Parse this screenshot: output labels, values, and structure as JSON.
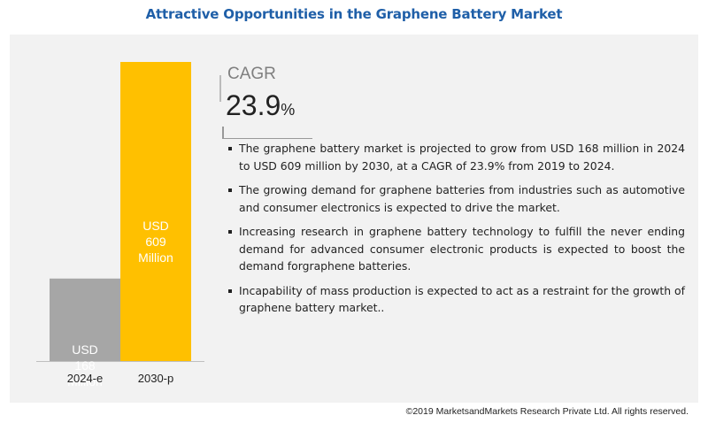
{
  "title": "Attractive Opportunities in the Graphene Battery Market",
  "cagr": {
    "label": "CAGR",
    "value": "23.9",
    "unit": "%"
  },
  "bullets": [
    "The graphene battery market is projected to grow from USD 168 million in 2024 to USD 609 million by 2030, at a CAGR of 23.9% from 2019 to 2024.",
    "The growing demand for graphene batteries from industries such as automotive and consumer electronics is expected to drive the market.",
    "Increasing research in graphene battery technology to fulfill the never ending demand for advanced consumer electronic products is expected to boost the demand forgraphene batteries.",
    "Incapability of mass production is expected to act as a restraint for the growth of graphene battery market.."
  ],
  "copyright": "©2019 MarketsandMarkets Research Private Ltd. All rights reserved.",
  "colors": {
    "title": "#1f5fa8",
    "bar1": "#a6a6a6",
    "bar2": "#ffc000",
    "panel": "#f2f2f2"
  },
  "chart_data": {
    "type": "bar",
    "categories": [
      "2024-e",
      "2030-p"
    ],
    "values": [
      168,
      609
    ],
    "data_labels": [
      [
        "USD",
        "168",
        "Million"
      ],
      [
        "USD",
        "609",
        "Million"
      ]
    ],
    "ylim": [
      0,
      609
    ],
    "grid": false
  }
}
